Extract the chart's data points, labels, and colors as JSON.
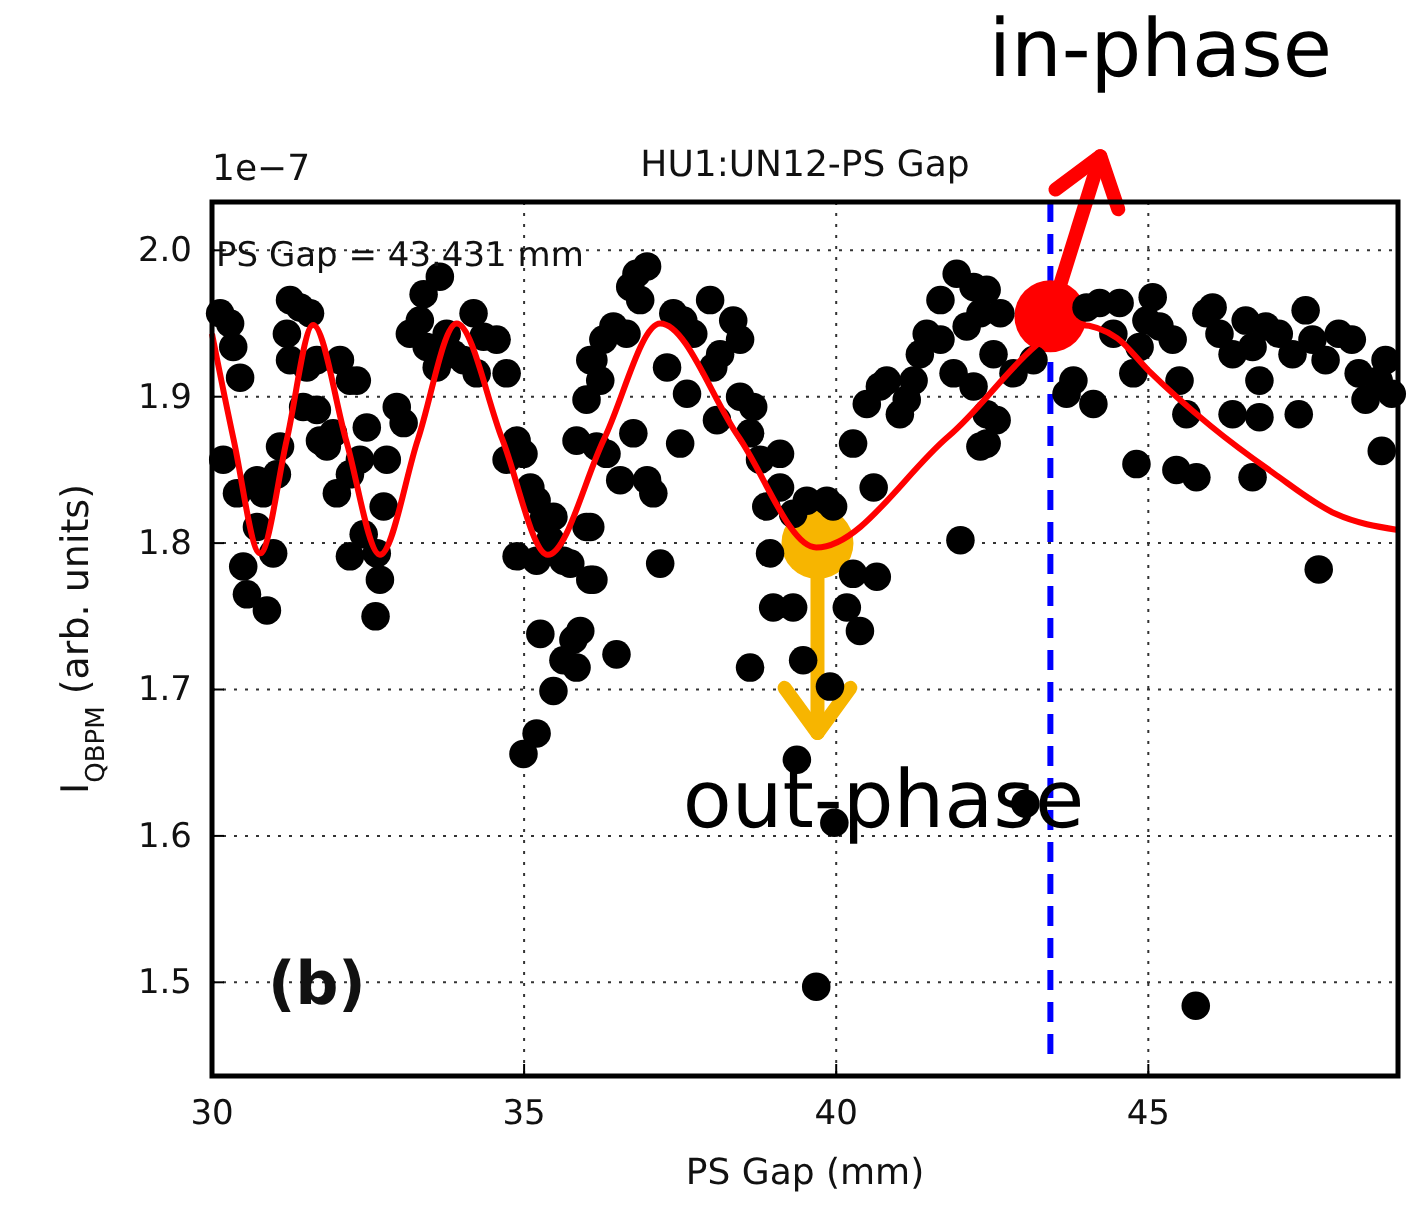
{
  "chart_data": {
    "type": "scatter",
    "title": "HU1:UN12-PS Gap",
    "xlabel": "PS Gap (mm)",
    "ylabel": "I$_{QBPM}$ (arb. units)",
    "xlim": [
      30,
      49
    ],
    "xticks": [
      30,
      35,
      40,
      45
    ],
    "ylim": [
      1.436,
      2.033
    ],
    "yticks": [
      1.5,
      1.6,
      1.7,
      1.8,
      1.9,
      {
        "value": 2.0,
        "label": "2.0"
      }
    ],
    "grid": true,
    "marker": "circle",
    "ref_lines": [
      {
        "axis": "x",
        "value": 43.431,
        "color": "#0000ff",
        "line_style": "dashed"
      }
    ],
    "annotations": [
      "1e−7",
      "(b)",
      "PS Gap = 43.431 mm",
      {
        "text": "in-phase",
        "x": 43.431,
        "y": 1.955
      },
      {
        "text": "out-phase",
        "x": 39.7,
        "y": 1.8
      }
    ],
    "series": [
      {
        "type": "scatter",
        "color": "#000000",
        "x": [
          30.13,
          30.29,
          30.34,
          30.45,
          30.18,
          30.4,
          30.72,
          30.82,
          31.04,
          31.09,
          30.5,
          30.56,
          30.88,
          30.98,
          30.72,
          31.25,
          31.41,
          31.57,
          31.2,
          31.25,
          31.52,
          31.68,
          31.46,
          31.68,
          31.73,
          31.84,
          31.94,
          32.05,
          32.21,
          32.32,
          32.0,
          32.21,
          32.37,
          32.48,
          32.21,
          32.43,
          32.64,
          32.69,
          32.62,
          32.8,
          32.75,
          32.96,
          33.07,
          33.17,
          33.33,
          33.39,
          33.65,
          33.44,
          33.6,
          33.76,
          33.87,
          34.03,
          34.19,
          34.24,
          34.35,
          34.56,
          34.72,
          34.72,
          34.88,
          34.99,
          35.1,
          35.2,
          35.31,
          35.42,
          35.47,
          35.63,
          35.74,
          34.88,
          35.2,
          36.0,
          36.06,
          35.79,
          35.63,
          35.26,
          35.47,
          35.2,
          34.99,
          35.84,
          36.06,
          36.0,
          35.84,
          36.16,
          36.27,
          36.8,
          36.86,
          36.97,
          36.7,
          36.43,
          36.11,
          36.22,
          36.64,
          37.39,
          37.55,
          37.98,
          38.35,
          38.46,
          38.14,
          37.71,
          37.29,
          37.61,
          38.03,
          38.09,
          38.46,
          38.67,
          38.62,
          38.78,
          39.1,
          39.1,
          38.88,
          39.31,
          39.53,
          39.85,
          39.95,
          36.06,
          36.32,
          36.75,
          37.5,
          36.54,
          36.97,
          37.07,
          37.18,
          36.11,
          35.9,
          36.48,
          38.94,
          38.99,
          39.31,
          38.62,
          39.47,
          40.27,
          40.65,
          40.17,
          40.38,
          39.9,
          39.37,
          40.27,
          40.49,
          40.6,
          40.81,
          41.13,
          41.02,
          41.34,
          41.67,
          41.45,
          41.67,
          41.93,
          42.2,
          42.31,
          42.09,
          41.88,
          42.2,
          42.41,
          42.31,
          41.99,
          40.7,
          41.24,
          42.41,
          42.63,
          42.52,
          42.84,
          43.16,
          42.57,
          42.41,
          43.69,
          43.8,
          44.12,
          44.01,
          44.22,
          44.54,
          44.44,
          44.76,
          44.86,
          45.07,
          45.18,
          44.97,
          45.39,
          45.5,
          45.61,
          45.93,
          46.03,
          46.14,
          46.35,
          46.56,
          46.67,
          46.78,
          46.88,
          47.09,
          47.31,
          47.52,
          47.63,
          47.84,
          48.05,
          48.26,
          48.37,
          48.48,
          48.69,
          48.8,
          48.9,
          46.35,
          46.78,
          47.41,
          44.81,
          45.45,
          45.77,
          46.67,
          47.73,
          48.74,
          39.97,
          43.03,
          39.68,
          45.76
        ],
        "values": [
          1.957,
          1.95,
          1.934,
          1.913,
          1.857,
          1.834,
          1.843,
          1.834,
          1.847,
          1.866,
          1.784,
          1.765,
          1.754,
          1.793,
          1.811,
          1.966,
          1.961,
          1.957,
          1.943,
          1.925,
          1.92,
          1.925,
          1.893,
          1.891,
          1.87,
          1.866,
          1.875,
          1.925,
          1.911,
          1.911,
          1.834,
          1.847,
          1.857,
          1.879,
          1.791,
          1.806,
          1.793,
          1.775,
          1.75,
          1.857,
          1.825,
          1.893,
          1.882,
          1.943,
          1.952,
          1.97,
          1.982,
          1.934,
          1.92,
          1.943,
          1.929,
          1.925,
          1.957,
          1.916,
          1.941,
          1.939,
          1.916,
          1.857,
          1.87,
          1.861,
          1.838,
          1.829,
          1.816,
          1.802,
          1.818,
          1.788,
          1.786,
          1.791,
          1.788,
          1.811,
          1.775,
          1.734,
          1.72,
          1.738,
          1.699,
          1.67,
          1.656,
          1.715,
          1.925,
          1.898,
          1.87,
          1.866,
          1.939,
          1.984,
          1.966,
          1.989,
          1.975,
          1.948,
          1.925,
          1.911,
          1.943,
          1.957,
          1.952,
          1.966,
          1.952,
          1.939,
          1.929,
          1.943,
          1.92,
          1.902,
          1.92,
          1.884,
          1.9,
          1.893,
          1.875,
          1.857,
          1.861,
          1.838,
          1.825,
          1.82,
          1.829,
          1.829,
          1.825,
          1.811,
          1.861,
          1.875,
          1.868,
          1.843,
          1.843,
          1.834,
          1.786,
          1.775,
          1.74,
          1.724,
          1.793,
          1.756,
          1.756,
          1.715,
          1.72,
          1.779,
          1.777,
          1.756,
          1.74,
          1.702,
          1.652,
          1.868,
          1.895,
          1.838,
          1.911,
          1.898,
          1.888,
          1.929,
          1.939,
          1.943,
          1.966,
          1.984,
          1.975,
          1.957,
          1.948,
          1.916,
          1.907,
          1.888,
          1.866,
          1.802,
          1.907,
          1.911,
          1.973,
          1.957,
          1.929,
          1.916,
          1.925,
          1.884,
          1.868,
          1.902,
          1.911,
          1.895,
          1.961,
          1.964,
          1.964,
          1.943,
          1.916,
          1.934,
          1.968,
          1.948,
          1.952,
          1.939,
          1.911,
          1.888,
          1.957,
          1.961,
          1.943,
          1.929,
          1.952,
          1.934,
          1.911,
          1.948,
          1.943,
          1.929,
          1.959,
          1.939,
          1.925,
          1.943,
          1.939,
          1.916,
          1.898,
          1.911,
          1.925,
          1.902,
          1.888,
          1.886,
          1.888,
          1.854,
          1.85,
          1.845,
          1.845,
          1.782,
          1.863,
          1.609,
          1.622,
          1.497,
          1.484
        ]
      },
      {
        "type": "line",
        "color": "#ff0000",
        "marker": "none",
        "x": [
          30,
          30.35,
          30.77,
          31.2,
          31.62,
          32.15,
          32.69,
          33.3,
          33.92,
          34.65,
          35.38,
          36.28,
          37.18,
          38.43,
          39.68,
          41.8,
          43.9,
          44.5,
          45,
          46,
          47,
          48,
          49
        ],
        "values": [
          1.943,
          1.87,
          1.793,
          1.871,
          1.949,
          1.87,
          1.792,
          1.871,
          1.95,
          1.871,
          1.792,
          1.871,
          1.95,
          1.873,
          1.797,
          1.873,
          1.949,
          1.94,
          1.918,
          1.88,
          1.848,
          1.82,
          1.809
        ]
      }
    ]
  }
}
